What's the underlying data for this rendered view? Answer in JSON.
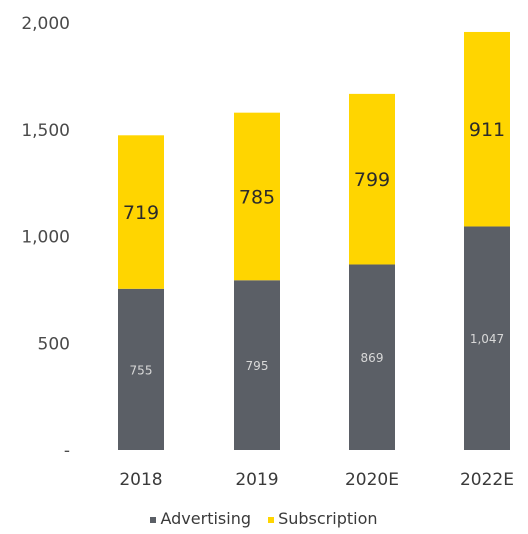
{
  "chart_data": {
    "type": "bar",
    "stacked": true,
    "categories": [
      "2018",
      "2019",
      "2020E",
      "2022E"
    ],
    "series": [
      {
        "name": "Advertising",
        "values": [
          755,
          795,
          869,
          1047
        ],
        "value_labels": [
          "755",
          "795",
          "869",
          "1,047"
        ],
        "color": "#5b5f66"
      },
      {
        "name": "Subscription",
        "values": [
          719,
          785,
          799,
          911
        ],
        "value_labels": [
          "719",
          "785",
          "799",
          "911"
        ],
        "color": "#ffd500"
      }
    ],
    "y_ticks": [
      "-",
      "500",
      "1,000",
      "1,500",
      "2,000"
    ],
    "ylim": [
      0,
      2000
    ],
    "grid": false,
    "legend_position": "bottom"
  }
}
